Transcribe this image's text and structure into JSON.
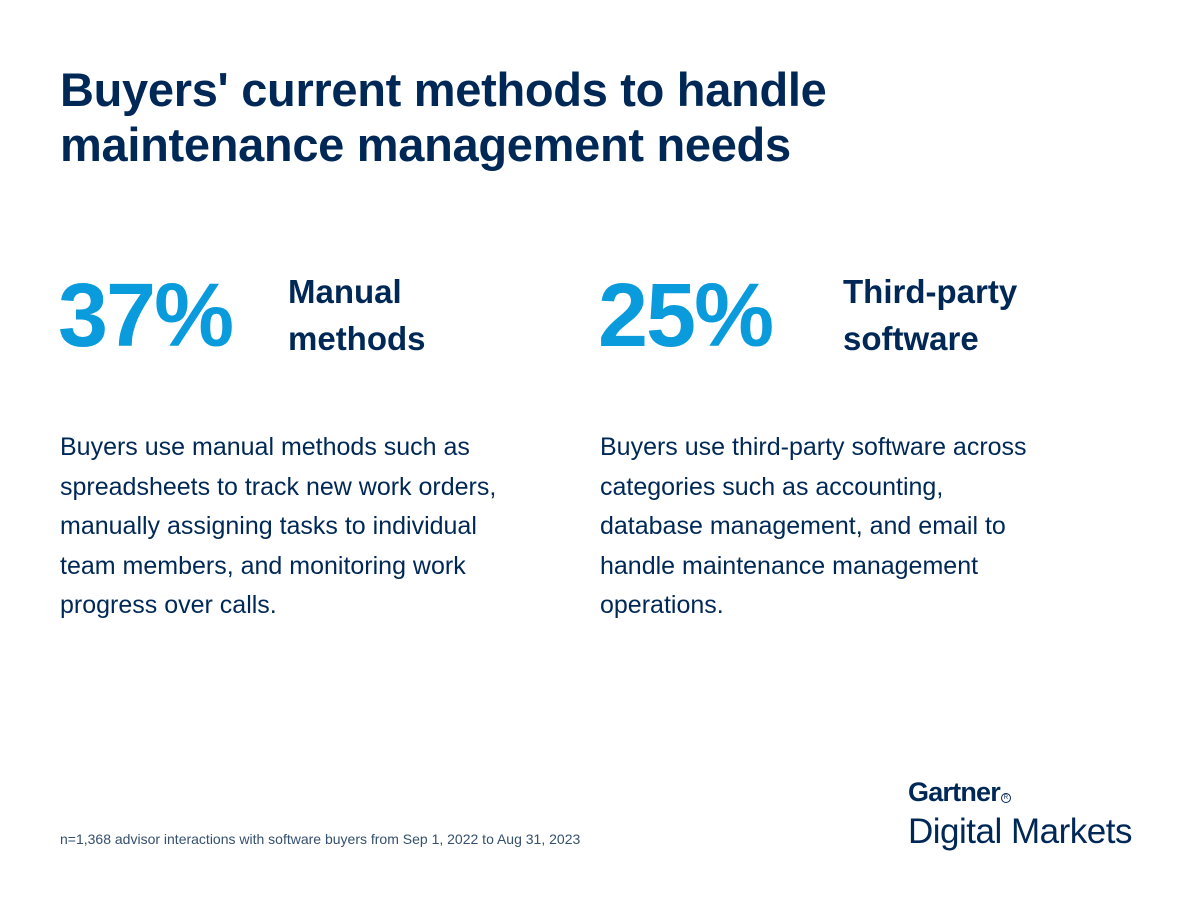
{
  "title": {
    "line1": "Buyers' current methods to handle",
    "line2": "maintenance management needs"
  },
  "stats": [
    {
      "value": "37%",
      "label_line1": "Manual",
      "label_line2": "methods",
      "description": "Buyers use manual methods such as spreadsheets to track new work orders, manually assigning tasks to individual team members, and monitoring work progress over calls."
    },
    {
      "value": "25%",
      "label_line1": "Third-party",
      "label_line2": "software",
      "description": "Buyers use third-party software across categories such as accounting, database management, and email to handle maintenance management operations."
    }
  ],
  "footnote": "n=1,368 advisor interactions with software buyers from Sep 1, 2022 to Aug 31, 2023",
  "logo": {
    "brand": "Gartner",
    "registered": "R",
    "product": "Digital Markets"
  },
  "colors": {
    "navy": "#002856",
    "accent_blue": "#0a9bdc"
  }
}
